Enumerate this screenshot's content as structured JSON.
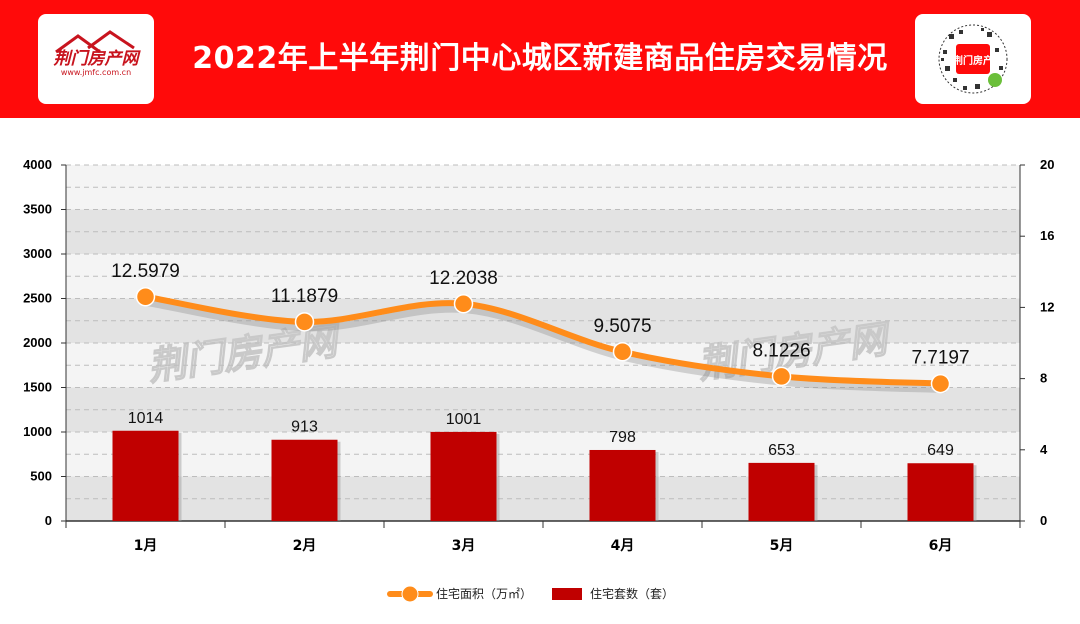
{
  "header": {
    "title": "2022年上半年荆门中心城区新建商品住房交易情况",
    "logo_text": "荆门房产网",
    "logo_url_text": "www.jmfc.com.cn",
    "qr_logo_text": "荆门房产"
  },
  "colors": {
    "header_bg": "#ff0a0a",
    "bar": "#c00000",
    "line": "#ff8c1a"
  },
  "chart_data": {
    "type": "bar+line",
    "categories": [
      "1月",
      "2月",
      "3月",
      "4月",
      "5月",
      "6月"
    ],
    "series": [
      {
        "name": "住宅套数（套）",
        "type": "bar",
        "axis": "left",
        "values": [
          1014,
          913,
          1001,
          798,
          653,
          649
        ],
        "labels": [
          "1014",
          "913",
          "1001",
          "798",
          "653",
          "649"
        ]
      },
      {
        "name": "住宅面积（万㎡）",
        "type": "line",
        "axis": "right",
        "values": [
          12.5979,
          11.1879,
          12.2038,
          9.5075,
          8.1226,
          7.7197
        ],
        "labels": [
          "12.5979",
          "11.1879",
          "12.2038",
          "9.5075",
          "8.1226",
          "7.7197"
        ]
      }
    ],
    "yleft": {
      "min": 0,
      "max": 4000,
      "ticks": [
        "0",
        "500",
        "1000",
        "1500",
        "2000",
        "2500",
        "3000",
        "3500",
        "4000"
      ]
    },
    "yright": {
      "min": 0,
      "max": 20,
      "ticks": [
        "0",
        "4",
        "8",
        "12",
        "16",
        "20"
      ]
    },
    "grid": true,
    "legend": "bottom",
    "watermark": "荆门房产网"
  }
}
